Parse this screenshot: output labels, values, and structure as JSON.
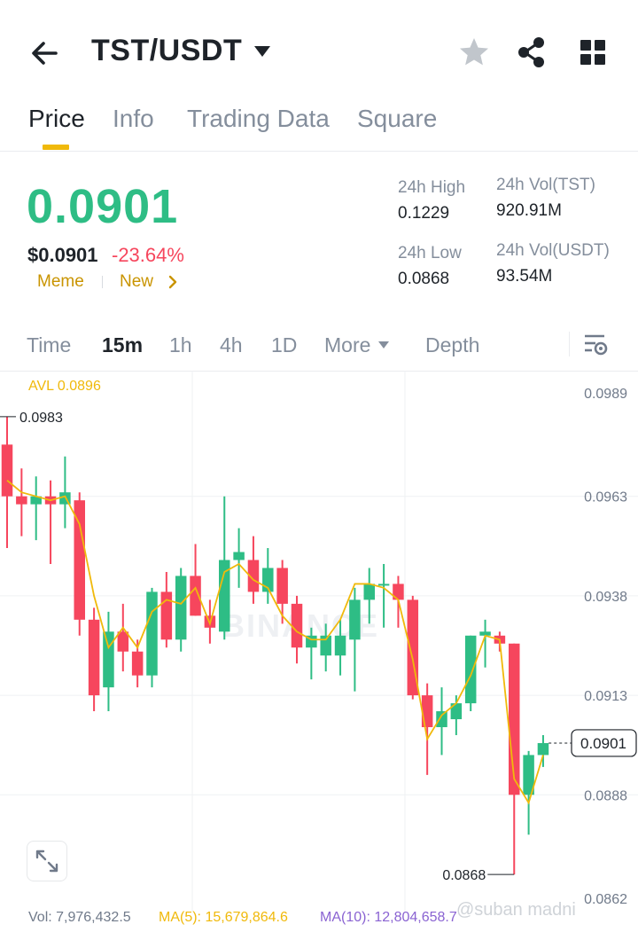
{
  "header": {
    "pair": "TST/USDT",
    "icons": [
      "back-icon",
      "caret-down-icon",
      "star-icon",
      "share-icon",
      "grid-icon"
    ]
  },
  "tabs": [
    {
      "label": "Price",
      "active": true
    },
    {
      "label": "Info",
      "active": false
    },
    {
      "label": "Trading Data",
      "active": false
    },
    {
      "label": "Square",
      "active": false
    }
  ],
  "ticker": {
    "last_price": "0.0901",
    "fiat_price": "$0.0901",
    "change": "-23.64%",
    "tags": [
      "Meme",
      "New"
    ],
    "stats": {
      "high_label": "24h High",
      "high_value": "0.1229",
      "low_label": "24h Low",
      "low_value": "0.0868",
      "vol_base_label": "24h Vol(TST)",
      "vol_base_value": "920.91M",
      "vol_quote_label": "24h Vol(USDT)",
      "vol_quote_value": "93.54M"
    }
  },
  "intervals": {
    "items": [
      "Time",
      "15m",
      "1h",
      "4h",
      "1D",
      "More",
      "Depth"
    ],
    "active": "15m"
  },
  "chart": {
    "avl": "AVL 0.0896",
    "watermark": "BINANCE"
  },
  "chart_data": {
    "type": "candlestick",
    "y_ticks": [
      "0.0989",
      "0.0963",
      "0.0938",
      "0.0913",
      "0.0888",
      "0.0862"
    ],
    "ylim": [
      0.0862,
      0.0989
    ],
    "high_marker": "0.0983",
    "low_marker": "0.0868",
    "current_price": "0.0901",
    "colors": {
      "up": "#2ebd85",
      "down": "#f6465d",
      "ma": "#f0b90b"
    },
    "candles": [
      {
        "o": 0.0976,
        "h": 0.0983,
        "l": 0.095,
        "c": 0.0963
      },
      {
        "o": 0.0963,
        "h": 0.097,
        "l": 0.0953,
        "c": 0.0961
      },
      {
        "o": 0.0961,
        "h": 0.0968,
        "l": 0.0952,
        "c": 0.0963
      },
      {
        "o": 0.0963,
        "h": 0.0967,
        "l": 0.0946,
        "c": 0.0961
      },
      {
        "o": 0.0961,
        "h": 0.0973,
        "l": 0.0955,
        "c": 0.0964
      },
      {
        "o": 0.0962,
        "h": 0.0964,
        "l": 0.0928,
        "c": 0.0932
      },
      {
        "o": 0.0932,
        "h": 0.0935,
        "l": 0.0909,
        "c": 0.0913
      },
      {
        "o": 0.0915,
        "h": 0.0934,
        "l": 0.0909,
        "c": 0.0929
      },
      {
        "o": 0.0929,
        "h": 0.0936,
        "l": 0.0919,
        "c": 0.0924
      },
      {
        "o": 0.0924,
        "h": 0.0927,
        "l": 0.0915,
        "c": 0.0918
      },
      {
        "o": 0.0918,
        "h": 0.094,
        "l": 0.0915,
        "c": 0.0939
      },
      {
        "o": 0.0939,
        "h": 0.0944,
        "l": 0.0925,
        "c": 0.0927
      },
      {
        "o": 0.0927,
        "h": 0.0945,
        "l": 0.0924,
        "c": 0.0943
      },
      {
        "o": 0.0943,
        "h": 0.0951,
        "l": 0.0933,
        "c": 0.0933
      },
      {
        "o": 0.0933,
        "h": 0.0937,
        "l": 0.0926,
        "c": 0.093
      },
      {
        "o": 0.0929,
        "h": 0.0963,
        "l": 0.0927,
        "c": 0.0947
      },
      {
        "o": 0.0947,
        "h": 0.0955,
        "l": 0.094,
        "c": 0.0949
      },
      {
        "o": 0.0947,
        "h": 0.0953,
        "l": 0.0936,
        "c": 0.0939
      },
      {
        "o": 0.0939,
        "h": 0.095,
        "l": 0.0936,
        "c": 0.0945
      },
      {
        "o": 0.0945,
        "h": 0.0947,
        "l": 0.0931,
        "c": 0.0936
      },
      {
        "o": 0.0936,
        "h": 0.0938,
        "l": 0.0921,
        "c": 0.0925
      },
      {
        "o": 0.0925,
        "h": 0.093,
        "l": 0.0917,
        "c": 0.0928
      },
      {
        "o": 0.0923,
        "h": 0.0931,
        "l": 0.0919,
        "c": 0.0928
      },
      {
        "o": 0.0923,
        "h": 0.0932,
        "l": 0.0918,
        "c": 0.0928
      },
      {
        "o": 0.0927,
        "h": 0.094,
        "l": 0.0914,
        "c": 0.0937
      },
      {
        "o": 0.0937,
        "h": 0.0945,
        "l": 0.0931,
        "c": 0.0941
      },
      {
        "o": 0.0941,
        "h": 0.0946,
        "l": 0.093,
        "c": 0.0941
      },
      {
        "o": 0.0941,
        "h": 0.0943,
        "l": 0.093,
        "c": 0.0937
      },
      {
        "o": 0.0937,
        "h": 0.0938,
        "l": 0.0912,
        "c": 0.0913
      },
      {
        "o": 0.0913,
        "h": 0.0916,
        "l": 0.0893,
        "c": 0.0905
      },
      {
        "o": 0.0905,
        "h": 0.0915,
        "l": 0.0898,
        "c": 0.0909
      },
      {
        "o": 0.0907,
        "h": 0.0913,
        "l": 0.0903,
        "c": 0.0911
      },
      {
        "o": 0.0911,
        "h": 0.0928,
        "l": 0.0909,
        "c": 0.0928
      },
      {
        "o": 0.0928,
        "h": 0.0932,
        "l": 0.092,
        "c": 0.0929
      },
      {
        "o": 0.0928,
        "h": 0.0929,
        "l": 0.0924,
        "c": 0.0926
      },
      {
        "o": 0.0926,
        "h": 0.0926,
        "l": 0.0868,
        "c": 0.0888
      },
      {
        "o": 0.0888,
        "h": 0.0899,
        "l": 0.0878,
        "c": 0.0898
      },
      {
        "o": 0.0898,
        "h": 0.0903,
        "l": 0.0895,
        "c": 0.0901
      }
    ],
    "ma_line": [
      0.0967,
      0.0964,
      0.0963,
      0.0962,
      0.0963,
      0.0956,
      0.0938,
      0.0925,
      0.093,
      0.0925,
      0.0934,
      0.0937,
      0.0936,
      0.094,
      0.0931,
      0.0944,
      0.0946,
      0.0942,
      0.094,
      0.0933,
      0.0929,
      0.0927,
      0.0927,
      0.0932,
      0.0941,
      0.0941,
      0.094,
      0.0937,
      0.0922,
      0.0902,
      0.0908,
      0.0911,
      0.0918,
      0.0928,
      0.0927,
      0.0892,
      0.0886,
      0.0898
    ]
  },
  "volume": {
    "vol": "Vol: 7,976,432.5",
    "ma5": "MA(5): 15,679,864.6",
    "ma10": "MA(10): 12,804,658.7"
  },
  "overlay_text": "@suban madni"
}
